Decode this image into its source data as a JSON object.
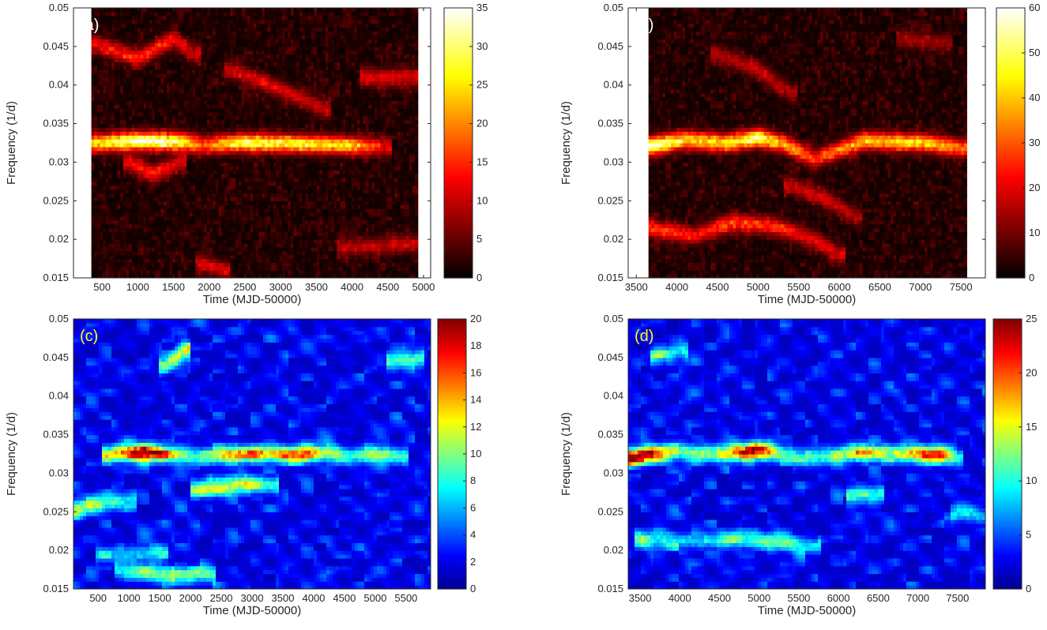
{
  "chart_data": [
    {
      "type": "heatmap",
      "panel_label": "(a)",
      "colormap": "hot",
      "label_color": "#ffffff",
      "xlabel": "Time (MJD-50000)",
      "ylabel": "Frequency (1/d)",
      "xlim": [
        100,
        5100
      ],
      "ylim": [
        0.015,
        0.05
      ],
      "data_xrange": [
        350,
        4920
      ],
      "x_ticks": [
        "500",
        "1000",
        "1500",
        "2000",
        "2500",
        "3000",
        "3500",
        "4000",
        "4500",
        "5000"
      ],
      "y_ticks": [
        "0.015",
        "0.02",
        "0.025",
        "0.03",
        "0.035",
        "0.04",
        "0.045",
        "0.05"
      ],
      "colorbar": {
        "min": 0,
        "max": 35,
        "ticks": [
          "0",
          "5",
          "10",
          "15",
          "20",
          "25",
          "30",
          "35"
        ]
      },
      "ridges": [
        {
          "points": [
            [
              350,
              0.0325
            ],
            [
              1000,
              0.0328
            ],
            [
              1600,
              0.0327
            ],
            [
              1900,
              0.0322
            ],
            [
              2500,
              0.0326
            ],
            [
              3500,
              0.0324
            ],
            [
              4000,
              0.0322
            ],
            [
              4450,
              0.032
            ]
          ],
          "intensity": [
            22,
            34,
            28,
            16,
            28,
            24,
            22,
            10
          ]
        },
        {
          "points": [
            [
              350,
              0.0455
            ],
            [
              1000,
              0.0435
            ],
            [
              1500,
              0.046
            ],
            [
              1800,
              0.044
            ]
          ],
          "intensity": [
            10,
            13,
            12,
            8
          ]
        },
        {
          "points": [
            [
              900,
              0.03
            ],
            [
              1200,
              0.0285
            ],
            [
              1600,
              0.03
            ]
          ],
          "intensity": [
            11,
            13,
            9
          ]
        },
        {
          "points": [
            [
              2300,
              0.042
            ],
            [
              3000,
              0.0395
            ],
            [
              3600,
              0.037
            ]
          ],
          "intensity": [
            9,
            10,
            8
          ]
        },
        {
          "points": [
            [
              4200,
              0.041
            ],
            [
              4920,
              0.041
            ]
          ],
          "intensity": [
            10,
            9
          ]
        },
        {
          "points": [
            [
              3900,
              0.019
            ],
            [
              4920,
              0.0195
            ]
          ],
          "intensity": [
            8,
            8
          ]
        },
        {
          "points": [
            [
              1900,
              0.017
            ],
            [
              2200,
              0.016
            ]
          ],
          "intensity": [
            9,
            9
          ]
        }
      ]
    },
    {
      "type": "heatmap",
      "panel_label": "(b)",
      "colormap": "hot",
      "label_color": "#ffffff",
      "xlabel": "Time (MJD-50000)",
      "ylabel": "Frequency (1/d)",
      "xlim": [
        3400,
        7800
      ],
      "ylim": [
        0.015,
        0.05
      ],
      "data_xrange": [
        3650,
        7570
      ],
      "x_ticks": [
        "3500",
        "4000",
        "4500",
        "5000",
        "5500",
        "6000",
        "6500",
        "7000",
        "7500"
      ],
      "y_ticks": [
        "0.015",
        "0.02",
        "0.025",
        "0.03",
        "0.035",
        "0.04",
        "0.045",
        "0.05"
      ],
      "colorbar": {
        "min": 0,
        "max": 60,
        "ticks": [
          "0",
          "10",
          "20",
          "30",
          "40",
          "50",
          "60"
        ]
      },
      "ridges": [
        {
          "points": [
            [
              3650,
              0.032
            ],
            [
              4100,
              0.033
            ],
            [
              4600,
              0.0325
            ],
            [
              5000,
              0.0332
            ],
            [
              5300,
              0.0325
            ],
            [
              5700,
              0.0305
            ],
            [
              6300,
              0.0328
            ],
            [
              7000,
              0.0326
            ],
            [
              7570,
              0.0318
            ]
          ],
          "intensity": [
            55,
            40,
            38,
            52,
            36,
            24,
            36,
            40,
            28
          ]
        },
        {
          "points": [
            [
              3650,
              0.0215
            ],
            [
              4200,
              0.0205
            ],
            [
              4700,
              0.0222
            ],
            [
              5200,
              0.0218
            ],
            [
              5700,
              0.02
            ],
            [
              6000,
              0.018
            ]
          ],
          "intensity": [
            25,
            20,
            26,
            22,
            18,
            16
          ]
        },
        {
          "points": [
            [
              4500,
              0.044
            ],
            [
              5000,
              0.042
            ],
            [
              5400,
              0.039
            ]
          ],
          "intensity": [
            12,
            15,
            12
          ]
        },
        {
          "points": [
            [
              6800,
              0.046
            ],
            [
              7300,
              0.0455
            ]
          ],
          "intensity": [
            11,
            11
          ]
        },
        {
          "points": [
            [
              5400,
              0.027
            ],
            [
              5800,
              0.0255
            ],
            [
              6200,
              0.023
            ]
          ],
          "intensity": [
            14,
            16,
            12
          ]
        }
      ]
    },
    {
      "type": "heatmap",
      "panel_label": "(c)",
      "colormap": "jet",
      "label_color": "#ffff00",
      "xlabel": "Time (MJD-50000)",
      "ylabel": "Frequency (1/d)",
      "xlim": [
        100,
        5900
      ],
      "ylim": [
        0.015,
        0.05
      ],
      "data_xrange": [
        100,
        5900
      ],
      "x_ticks": [
        "500",
        "1000",
        "1500",
        "2000",
        "2500",
        "3000",
        "3500",
        "4000",
        "4500",
        "5000",
        "5500"
      ],
      "y_ticks": [
        "0.015",
        "0.02",
        "0.025",
        "0.03",
        "0.035",
        "0.04",
        "0.045",
        "0.05"
      ],
      "colorbar": {
        "min": 0,
        "max": 20,
        "ticks": [
          "0",
          "2",
          "4",
          "6",
          "8",
          "10",
          "12",
          "14",
          "16",
          "18",
          "20"
        ]
      },
      "ridges": [
        {
          "points": [
            [
              700,
              0.0325
            ],
            [
              1250,
              0.0328
            ],
            [
              1700,
              0.0325
            ],
            [
              2100,
              0.0322
            ],
            [
              2700,
              0.0325
            ],
            [
              3300,
              0.0326
            ],
            [
              3800,
              0.0324
            ],
            [
              4200,
              0.0328
            ],
            [
              4600,
              0.0322
            ],
            [
              5000,
              0.0326
            ],
            [
              5400,
              0.0322
            ]
          ],
          "intensity": [
            10,
            20,
            11,
            7,
            13,
            12,
            15,
            10,
            6,
            10,
            6
          ]
        },
        {
          "points": [
            [
              2100,
              0.028
            ],
            [
              2500,
              0.0282
            ],
            [
              2900,
              0.0288
            ],
            [
              3300,
              0.0285
            ]
          ],
          "intensity": [
            9,
            11,
            10,
            7
          ]
        },
        {
          "points": [
            [
              150,
              0.0255
            ],
            [
              600,
              0.0262
            ],
            [
              1000,
              0.0265
            ]
          ],
          "intensity": [
            10,
            8,
            6
          ]
        },
        {
          "points": [
            [
              900,
              0.0175
            ],
            [
              1700,
              0.0168
            ],
            [
              2300,
              0.017
            ]
          ],
          "intensity": [
            6,
            9,
            7
          ]
        },
        {
          "points": [
            [
              1600,
              0.044
            ],
            [
              1900,
              0.046
            ]
          ],
          "intensity": [
            9,
            11
          ]
        },
        {
          "points": [
            [
              5300,
              0.0445
            ],
            [
              5700,
              0.045
            ]
          ],
          "intensity": [
            7,
            7
          ]
        },
        {
          "points": [
            [
              600,
              0.0195
            ],
            [
              1500,
              0.0198
            ]
          ],
          "intensity": [
            5,
            5
          ]
        }
      ]
    },
    {
      "type": "heatmap",
      "panel_label": "(d)",
      "colormap": "jet",
      "label_color": "#ffff00",
      "xlabel": "Time (MJD-50000)",
      "ylabel": "Frequency (1/d)",
      "xlim": [
        3350,
        7850
      ],
      "ylim": [
        0.015,
        0.05
      ],
      "data_xrange": [
        3350,
        7850
      ],
      "x_ticks": [
        "3500",
        "4000",
        "4500",
        "5000",
        "5500",
        "6000",
        "6500",
        "7000",
        "7500"
      ],
      "y_ticks": [
        "0.015",
        "0.02",
        "0.025",
        "0.03",
        "0.035",
        "0.04",
        "0.045",
        "0.05"
      ],
      "colorbar": {
        "min": 0,
        "max": 25,
        "ticks": [
          "0",
          "5",
          "10",
          "15",
          "20",
          "25"
        ]
      },
      "ridges": [
        {
          "points": [
            [
              3350,
              0.032
            ],
            [
              3600,
              0.0325
            ],
            [
              4000,
              0.0328
            ],
            [
              4500,
              0.0325
            ],
            [
              4950,
              0.033
            ],
            [
              5300,
              0.0325
            ],
            [
              5600,
              0.032
            ],
            [
              6000,
              0.0325
            ],
            [
              6300,
              0.0328
            ],
            [
              6700,
              0.0326
            ],
            [
              7200,
              0.0325
            ],
            [
              7500,
              0.032
            ]
          ],
          "intensity": [
            25,
            20,
            10,
            12,
            22,
            10,
            8,
            10,
            16,
            11,
            20,
            8
          ]
        },
        {
          "points": [
            [
              3500,
              0.0215
            ],
            [
              4100,
              0.0212
            ],
            [
              4700,
              0.0215
            ],
            [
              5200,
              0.0212
            ],
            [
              5700,
              0.0205
            ]
          ],
          "intensity": [
            9,
            6,
            8,
            10,
            6
          ]
        },
        {
          "points": [
            [
              3700,
              0.045
            ],
            [
              4000,
              0.046
            ]
          ],
          "intensity": [
            8,
            7
          ]
        },
        {
          "points": [
            [
              6200,
              0.027
            ],
            [
              6500,
              0.0275
            ]
          ],
          "intensity": [
            9,
            8
          ]
        },
        {
          "points": [
            [
              7500,
              0.025
            ],
            [
              7800,
              0.0245
            ]
          ],
          "intensity": [
            6,
            6
          ]
        }
      ]
    }
  ]
}
